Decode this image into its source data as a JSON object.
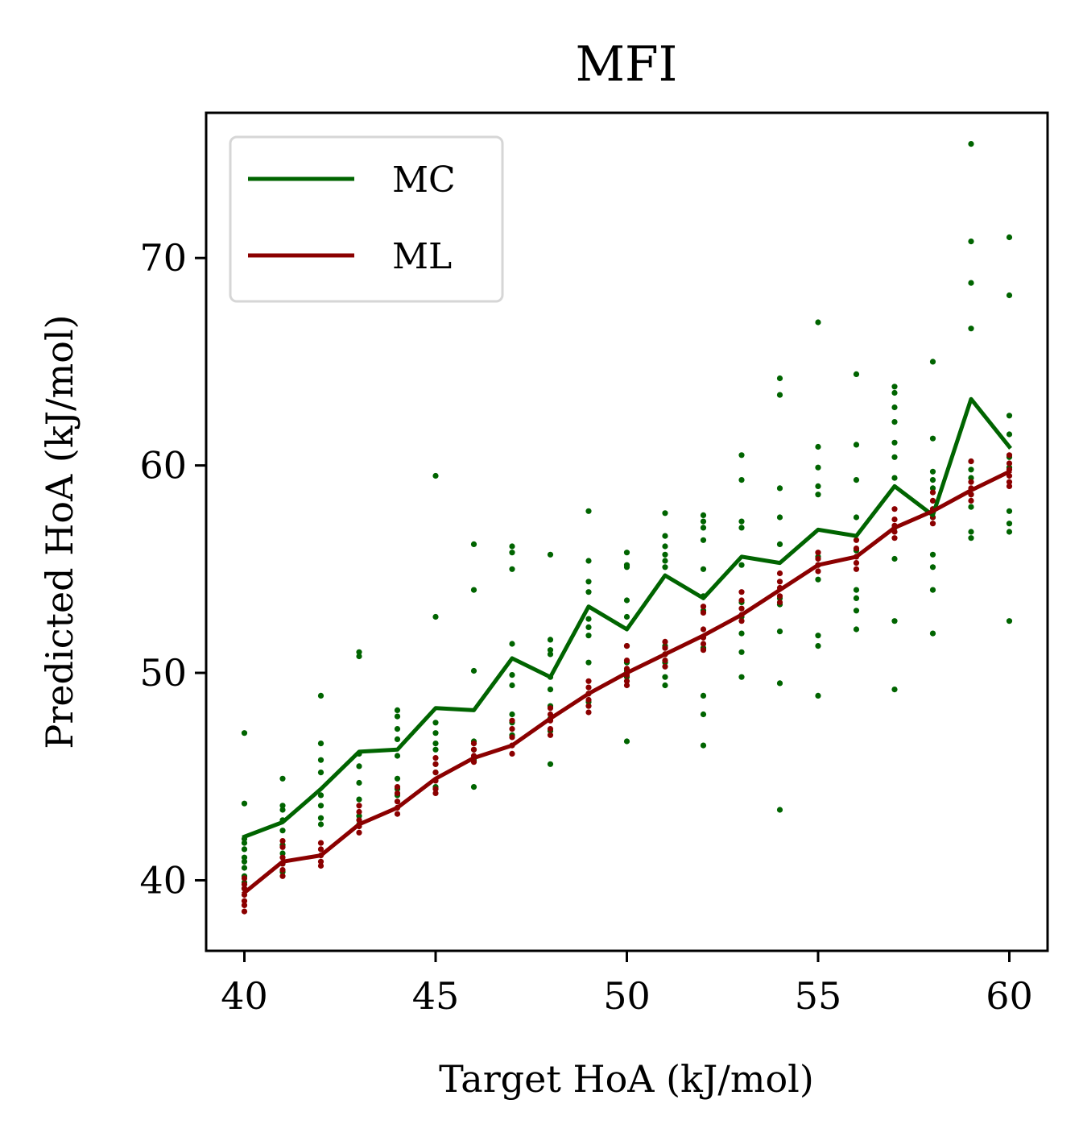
{
  "chart_data": {
    "type": "line",
    "title": "MFI",
    "xlabel": "Target HoA (kJ/mol)",
    "ylabel": "Predicted HoA (kJ/mol)",
    "xlim": [
      39,
      61
    ],
    "ylim": [
      36.6,
      77.0
    ],
    "xticks": [
      40,
      45,
      50,
      55,
      60
    ],
    "yticks": [
      40,
      50,
      60,
      70
    ],
    "grid": false,
    "legend_position": "top-left",
    "colors": {
      "MC": "#006400",
      "ML": "#8b0000"
    },
    "x": [
      40,
      41,
      42,
      43,
      44,
      45,
      46,
      47,
      48,
      49,
      50,
      51,
      52,
      53,
      54,
      55,
      56,
      57,
      58,
      59,
      60
    ],
    "series": [
      {
        "name": "MC",
        "color": "#006400",
        "values": [
          42.1,
          42.8,
          44.4,
          46.2,
          46.3,
          48.3,
          48.2,
          50.7,
          49.8,
          53.2,
          52.1,
          54.7,
          53.6,
          55.6,
          55.3,
          56.9,
          56.6,
          59.0,
          57.6,
          63.2,
          60.9
        ],
        "scatter": [
          [
            47.1,
            43.7,
            42.0,
            41.8,
            41.5,
            41.1,
            40.9,
            40.6,
            40.2,
            39.9,
            39.6
          ],
          [
            44.9,
            43.6,
            43.4,
            42.9,
            42.4,
            41.7,
            41.3,
            40.8,
            40.4
          ],
          [
            48.9,
            46.6,
            45.8,
            45.2,
            44.1,
            43.6,
            43.0,
            42.7
          ],
          [
            51.0,
            50.8,
            46.1,
            45.5,
            44.7,
            43.9,
            43.1,
            42.7
          ],
          [
            48.2,
            47.9,
            47.3,
            46.8,
            46.0,
            44.9,
            44.4,
            44.1
          ],
          [
            59.5,
            52.7,
            47.6,
            47.1,
            46.6,
            46.3,
            45.6,
            45.2,
            44.5
          ],
          [
            56.2,
            54.0,
            50.1,
            46.7,
            46.3,
            45.8,
            44.5
          ],
          [
            56.1,
            55.8,
            55.0,
            51.4,
            49.9,
            49.4,
            48.0,
            47.6,
            47.0
          ],
          [
            55.7,
            51.6,
            51.1,
            50.9,
            49.8,
            49.2,
            48.4,
            47.8,
            47.2,
            45.6
          ],
          [
            57.8,
            55.4,
            54.4,
            53.9,
            52.6,
            52.2,
            51.8,
            50.5,
            49.0,
            48.6
          ],
          [
            55.8,
            55.2,
            55.1,
            53.5,
            52.7,
            51.3,
            50.5,
            50.1,
            49.8,
            46.7
          ],
          [
            57.7,
            56.6,
            56.1,
            55.7,
            55.4,
            55.1,
            51.3,
            50.9,
            50.5,
            49.8,
            49.4
          ],
          [
            57.6,
            57.3,
            57.0,
            56.4,
            55.0,
            53.7,
            53.0,
            51.2,
            48.9,
            48.0,
            46.5
          ],
          [
            60.5,
            59.3,
            57.3,
            57.0,
            55.2,
            53.4,
            52.7,
            51.9,
            51.0,
            49.8
          ],
          [
            64.2,
            63.4,
            58.9,
            57.5,
            56.2,
            53.6,
            53.3,
            52.0,
            49.5,
            43.4
          ],
          [
            66.9,
            60.9,
            59.9,
            59.0,
            58.6,
            55.6,
            55.2,
            54.5,
            51.8,
            51.3,
            48.9
          ],
          [
            64.4,
            61.0,
            59.3,
            57.5,
            55.9,
            54.0,
            53.6,
            53.0,
            52.1
          ],
          [
            63.8,
            63.5,
            62.8,
            62.1,
            61.1,
            60.4,
            59.4,
            57.0,
            55.5,
            52.5,
            49.2
          ],
          [
            65.0,
            61.3,
            59.7,
            59.3,
            58.9,
            57.5,
            55.7,
            55.1,
            54.0,
            51.9
          ],
          [
            75.5,
            70.8,
            68.8,
            66.6,
            60.2,
            59.8,
            59.4,
            58.6,
            58.0,
            56.8,
            56.5
          ],
          [
            71.0,
            68.2,
            62.4,
            61.5,
            60.4,
            59.9,
            57.8,
            57.2,
            56.8,
            52.5
          ]
        ]
      },
      {
        "name": "ML",
        "color": "#8b0000",
        "values": [
          39.4,
          40.9,
          41.2,
          42.7,
          43.5,
          44.9,
          45.9,
          46.5,
          47.8,
          49.0,
          50.0,
          50.9,
          51.8,
          52.8,
          54.0,
          55.2,
          55.6,
          57.0,
          57.8,
          58.8,
          59.7
        ],
        "scatter": [
          [
            40.1,
            39.8,
            39.6,
            39.3,
            39.0,
            38.8,
            38.5
          ],
          [
            41.9,
            41.6,
            41.1,
            40.8,
            40.5,
            40.2
          ],
          [
            41.8,
            41.5,
            41.2,
            40.9,
            40.7
          ],
          [
            43.6,
            43.3,
            42.9,
            42.6,
            42.3
          ],
          [
            44.5,
            44.2,
            43.8,
            43.5,
            43.2
          ],
          [
            45.9,
            45.6,
            45.2,
            44.8,
            44.4,
            44.2
          ],
          [
            46.6,
            46.3,
            46.0,
            45.7
          ],
          [
            47.7,
            47.3,
            46.9,
            46.5,
            46.1
          ],
          [
            48.3,
            48.0,
            47.7,
            47.3,
            47.0
          ],
          [
            49.6,
            49.3,
            49.0,
            48.7,
            48.4,
            48.1
          ],
          [
            51.3,
            50.6,
            50.2,
            49.9,
            49.6,
            49.4
          ],
          [
            51.5,
            51.2,
            50.9,
            50.6,
            50.3
          ],
          [
            53.2,
            52.9,
            52.1,
            51.7,
            51.4,
            51.1
          ],
          [
            53.9,
            53.5,
            53.1,
            52.8,
            52.5
          ],
          [
            54.8,
            54.4,
            54.1,
            53.7,
            53.4
          ],
          [
            55.8,
            55.5,
            55.2,
            54.9
          ],
          [
            56.4,
            56.0,
            55.6,
            55.3,
            55.0
          ],
          [
            57.9,
            57.4,
            57.1,
            56.8,
            56.5
          ],
          [
            58.7,
            58.3,
            57.9,
            57.5,
            57.2
          ],
          [
            60.2,
            59.2,
            58.9,
            58.6,
            58.3
          ],
          [
            60.5,
            60.1,
            59.8,
            59.5,
            59.2,
            59.0
          ]
        ]
      }
    ]
  }
}
